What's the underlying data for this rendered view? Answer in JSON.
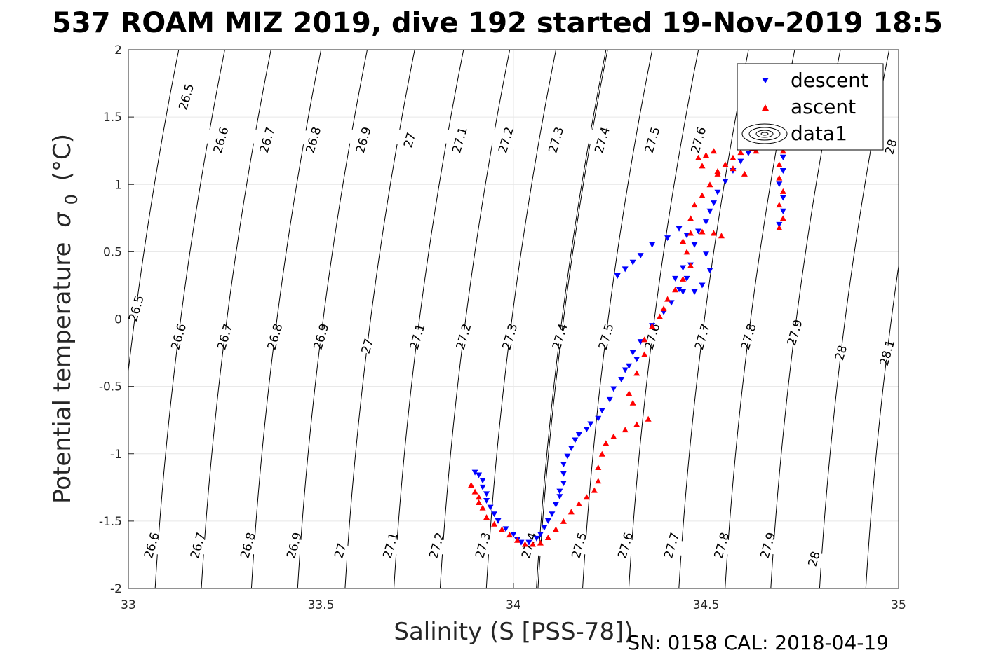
{
  "chart_data": {
    "type": "scatter",
    "title": "537 ROAM MIZ 2019, dive 192 started 19-Nov-2019 18:5",
    "xlabel": "Salinity (S [PSS-78])",
    "ylabel": "Potential temperature",
    "ylabel_symbol": "σ",
    "ylabel_subscript": "0",
    "ylabel_unit": "(°C)",
    "xlim": [
      33,
      35
    ],
    "ylim": [
      -2,
      2
    ],
    "xticks": [
      33,
      33.5,
      34,
      34.5,
      35
    ],
    "xtick_labels": [
      "33",
      "33.5",
      "34",
      "34.5",
      "35"
    ],
    "yticks": [
      -2,
      -1.5,
      -1,
      -0.5,
      0,
      0.5,
      1,
      1.5,
      2
    ],
    "ytick_labels": [
      "-2",
      "-1.5",
      "-1",
      "-0.5",
      "0",
      "0.5",
      "1",
      "1.5",
      "2"
    ],
    "grid": true,
    "legend_position": "top-right",
    "legend": [
      {
        "label": "descent",
        "marker": "triangle-down",
        "color": "#0000ff"
      },
      {
        "label": "ascent",
        "marker": "triangle-up",
        "color": "#ff0000"
      },
      {
        "label": "data1",
        "marker": "contour",
        "color": "#000000"
      }
    ],
    "density_contours": {
      "levels": [
        "26.5",
        "26.6",
        "26.7",
        "26.8",
        "26.9",
        "27",
        "27.1",
        "27.2",
        "27.3",
        "27.4",
        "27.5",
        "27.6",
        "27.7",
        "27.8",
        "27.9",
        "28",
        "28.1"
      ],
      "labels_top": [
        {
          "text": "26.5",
          "s": 33.15,
          "t": 1.65
        },
        {
          "text": "26.6",
          "s": 33.24,
          "t": 1.33
        },
        {
          "text": "26.7",
          "s": 33.36,
          "t": 1.33
        },
        {
          "text": "26.8",
          "s": 33.48,
          "t": 1.33
        },
        {
          "text": "26.9",
          "s": 33.61,
          "t": 1.33
        },
        {
          "text": "27",
          "s": 33.73,
          "t": 1.33
        },
        {
          "text": "27.1",
          "s": 33.86,
          "t": 1.33
        },
        {
          "text": "27.2",
          "s": 33.98,
          "t": 1.33
        },
        {
          "text": "27.3",
          "s": 34.11,
          "t": 1.33
        },
        {
          "text": "27.4",
          "s": 34.23,
          "t": 1.33
        },
        {
          "text": "27.5",
          "s": 34.36,
          "t": 1.33
        },
        {
          "text": "27.6",
          "s": 34.48,
          "t": 1.33
        },
        {
          "text": "28",
          "s": 34.98,
          "t": 1.28
        }
      ],
      "labels_mid": [
        {
          "text": "26.5",
          "s": 33.02,
          "t": 0.08
        },
        {
          "text": "26.6",
          "s": 33.13,
          "t": -0.13
        },
        {
          "text": "26.7",
          "s": 33.25,
          "t": -0.13
        },
        {
          "text": "26.8",
          "s": 33.38,
          "t": -0.13
        },
        {
          "text": "26.9",
          "s": 33.5,
          "t": -0.13
        },
        {
          "text": "27",
          "s": 33.62,
          "t": -0.2
        },
        {
          "text": "27.1",
          "s": 33.75,
          "t": -0.13
        },
        {
          "text": "27.2",
          "s": 33.87,
          "t": -0.13
        },
        {
          "text": "27.3",
          "s": 33.99,
          "t": -0.13
        },
        {
          "text": "27.4",
          "s": 34.12,
          "t": -0.13
        },
        {
          "text": "27.5",
          "s": 34.24,
          "t": -0.13
        },
        {
          "text": "27.6",
          "s": 34.36,
          "t": -0.13
        },
        {
          "text": "27.7",
          "s": 34.49,
          "t": -0.13
        },
        {
          "text": "27.8",
          "s": 34.61,
          "t": -0.13
        },
        {
          "text": "27.9",
          "s": 34.73,
          "t": -0.1
        },
        {
          "text": "28",
          "s": 34.85,
          "t": -0.25
        },
        {
          "text": "28.1",
          "s": 34.97,
          "t": -0.25
        }
      ],
      "labels_bottom": [
        {
          "text": "26.6",
          "s": 33.06,
          "t": -1.68
        },
        {
          "text": "26.7",
          "s": 33.18,
          "t": -1.68
        },
        {
          "text": "26.8",
          "s": 33.31,
          "t": -1.68
        },
        {
          "text": "26.9",
          "s": 33.43,
          "t": -1.68
        },
        {
          "text": "27",
          "s": 33.55,
          "t": -1.72
        },
        {
          "text": "27.1",
          "s": 33.68,
          "t": -1.68
        },
        {
          "text": "27.2",
          "s": 33.8,
          "t": -1.68
        },
        {
          "text": "27.3",
          "s": 33.92,
          "t": -1.68
        },
        {
          "text": "27.4",
          "s": 34.04,
          "t": -1.68
        },
        {
          "text": "27.5",
          "s": 34.17,
          "t": -1.68
        },
        {
          "text": "27.6",
          "s": 34.29,
          "t": -1.68
        },
        {
          "text": "27.7",
          "s": 34.41,
          "t": -1.68
        },
        {
          "text": "27.8",
          "s": 34.54,
          "t": -1.68
        },
        {
          "text": "27.9",
          "s": 34.66,
          "t": -1.68
        },
        {
          "text": "28",
          "s": 34.78,
          "t": -1.78
        }
      ]
    },
    "series": [
      {
        "name": "descent",
        "color": "#0000ff",
        "marker": "triangle-down",
        "points": [
          [
            33.9,
            -1.14
          ],
          [
            33.91,
            -1.16
          ],
          [
            33.92,
            -1.2
          ],
          [
            33.92,
            -1.25
          ],
          [
            33.93,
            -1.3
          ],
          [
            33.93,
            -1.35
          ],
          [
            33.94,
            -1.4
          ],
          [
            33.95,
            -1.45
          ],
          [
            33.96,
            -1.5
          ],
          [
            33.98,
            -1.56
          ],
          [
            34.0,
            -1.6
          ],
          [
            34.01,
            -1.64
          ],
          [
            34.02,
            -1.66
          ],
          [
            34.04,
            -1.66
          ],
          [
            34.06,
            -1.63
          ],
          [
            34.07,
            -1.6
          ],
          [
            34.08,
            -1.55
          ],
          [
            34.09,
            -1.5
          ],
          [
            34.1,
            -1.45
          ],
          [
            34.11,
            -1.38
          ],
          [
            34.12,
            -1.32
          ],
          [
            34.12,
            -1.28
          ],
          [
            34.13,
            -1.22
          ],
          [
            34.13,
            -1.15
          ],
          [
            34.13,
            -1.08
          ],
          [
            34.14,
            -1.02
          ],
          [
            34.15,
            -0.96
          ],
          [
            34.16,
            -0.9
          ],
          [
            34.17,
            -0.86
          ],
          [
            34.19,
            -0.82
          ],
          [
            34.2,
            -0.78
          ],
          [
            34.22,
            -0.74
          ],
          [
            34.23,
            -0.68
          ],
          [
            34.25,
            -0.6
          ],
          [
            34.26,
            -0.52
          ],
          [
            34.28,
            -0.45
          ],
          [
            34.3,
            -0.35
          ],
          [
            34.32,
            -0.3
          ],
          [
            34.29,
            -0.38
          ],
          [
            34.31,
            -0.25
          ],
          [
            34.33,
            -0.17
          ],
          [
            34.36,
            -0.05
          ],
          [
            34.39,
            0.05
          ],
          [
            34.41,
            0.12
          ],
          [
            34.43,
            0.22
          ],
          [
            34.42,
            0.3
          ],
          [
            34.44,
            0.38
          ],
          [
            34.46,
            0.4
          ],
          [
            34.45,
            0.3
          ],
          [
            34.44,
            0.2
          ],
          [
            34.47,
            0.2
          ],
          [
            34.49,
            0.25
          ],
          [
            34.51,
            0.36
          ],
          [
            34.5,
            0.48
          ],
          [
            34.47,
            0.55
          ],
          [
            34.45,
            0.62
          ],
          [
            34.43,
            0.67
          ],
          [
            34.4,
            0.6
          ],
          [
            34.36,
            0.55
          ],
          [
            34.33,
            0.47
          ],
          [
            34.31,
            0.42
          ],
          [
            34.29,
            0.37
          ],
          [
            34.27,
            0.32
          ],
          [
            34.48,
            0.65
          ],
          [
            34.5,
            0.72
          ],
          [
            34.51,
            0.8
          ],
          [
            34.52,
            0.86
          ],
          [
            34.53,
            0.94
          ],
          [
            34.55,
            1.02
          ],
          [
            34.57,
            1.1
          ],
          [
            34.59,
            1.17
          ],
          [
            34.61,
            1.23
          ],
          [
            34.63,
            1.28
          ],
          [
            34.65,
            1.32
          ],
          [
            34.67,
            1.35
          ],
          [
            34.69,
            1.38
          ],
          [
            34.71,
            1.4
          ],
          [
            34.72,
            1.3
          ],
          [
            34.7,
            1.2
          ],
          [
            34.7,
            1.1
          ],
          [
            34.69,
            1.0
          ],
          [
            34.7,
            0.9
          ],
          [
            34.7,
            0.8
          ],
          [
            34.69,
            0.7
          ]
        ]
      },
      {
        "name": "ascent",
        "color": "#ff0000",
        "marker": "triangle-up",
        "points": [
          [
            33.89,
            -1.23
          ],
          [
            33.9,
            -1.28
          ],
          [
            33.91,
            -1.32
          ],
          [
            33.91,
            -1.36
          ],
          [
            33.92,
            -1.4
          ],
          [
            33.93,
            -1.47
          ],
          [
            33.95,
            -1.52
          ],
          [
            33.97,
            -1.56
          ],
          [
            33.99,
            -1.6
          ],
          [
            34.01,
            -1.64
          ],
          [
            34.03,
            -1.67
          ],
          [
            34.05,
            -1.67
          ],
          [
            34.07,
            -1.66
          ],
          [
            34.09,
            -1.62
          ],
          [
            34.11,
            -1.56
          ],
          [
            34.13,
            -1.5
          ],
          [
            34.15,
            -1.43
          ],
          [
            34.17,
            -1.37
          ],
          [
            34.19,
            -1.32
          ],
          [
            34.21,
            -1.27
          ],
          [
            34.22,
            -1.2
          ],
          [
            34.22,
            -1.1
          ],
          [
            34.23,
            -1.0
          ],
          [
            34.24,
            -0.92
          ],
          [
            34.26,
            -0.87
          ],
          [
            34.29,
            -0.82
          ],
          [
            34.32,
            -0.78
          ],
          [
            34.35,
            -0.74
          ],
          [
            34.31,
            -0.62
          ],
          [
            34.3,
            -0.55
          ],
          [
            34.32,
            -0.4
          ],
          [
            34.34,
            -0.26
          ],
          [
            34.34,
            -0.15
          ],
          [
            34.36,
            -0.05
          ],
          [
            34.38,
            0.02
          ],
          [
            34.39,
            0.08
          ],
          [
            34.4,
            0.15
          ],
          [
            34.42,
            0.22
          ],
          [
            34.44,
            0.3
          ],
          [
            34.46,
            0.4
          ],
          [
            34.45,
            0.5
          ],
          [
            34.44,
            0.58
          ],
          [
            34.46,
            0.64
          ],
          [
            34.49,
            0.65
          ],
          [
            34.52,
            0.64
          ],
          [
            34.54,
            0.62
          ],
          [
            34.46,
            0.75
          ],
          [
            34.47,
            0.85
          ],
          [
            34.49,
            0.92
          ],
          [
            34.51,
            1.0
          ],
          [
            34.53,
            1.08
          ],
          [
            34.55,
            1.15
          ],
          [
            34.57,
            1.2
          ],
          [
            34.59,
            1.24
          ],
          [
            34.62,
            1.27
          ],
          [
            34.63,
            1.25
          ],
          [
            34.52,
            1.25
          ],
          [
            34.5,
            1.22
          ],
          [
            34.48,
            1.2
          ],
          [
            34.49,
            1.14
          ],
          [
            34.53,
            1.1
          ],
          [
            34.57,
            1.12
          ],
          [
            34.6,
            1.08
          ],
          [
            34.7,
            1.25
          ],
          [
            34.69,
            1.15
          ],
          [
            34.69,
            1.05
          ],
          [
            34.7,
            0.95
          ],
          [
            34.69,
            0.85
          ],
          [
            34.7,
            0.75
          ],
          [
            34.69,
            0.68
          ]
        ]
      }
    ]
  },
  "footer": {
    "serial_text": "SN: 0158  CAL: 2018-04-19"
  }
}
